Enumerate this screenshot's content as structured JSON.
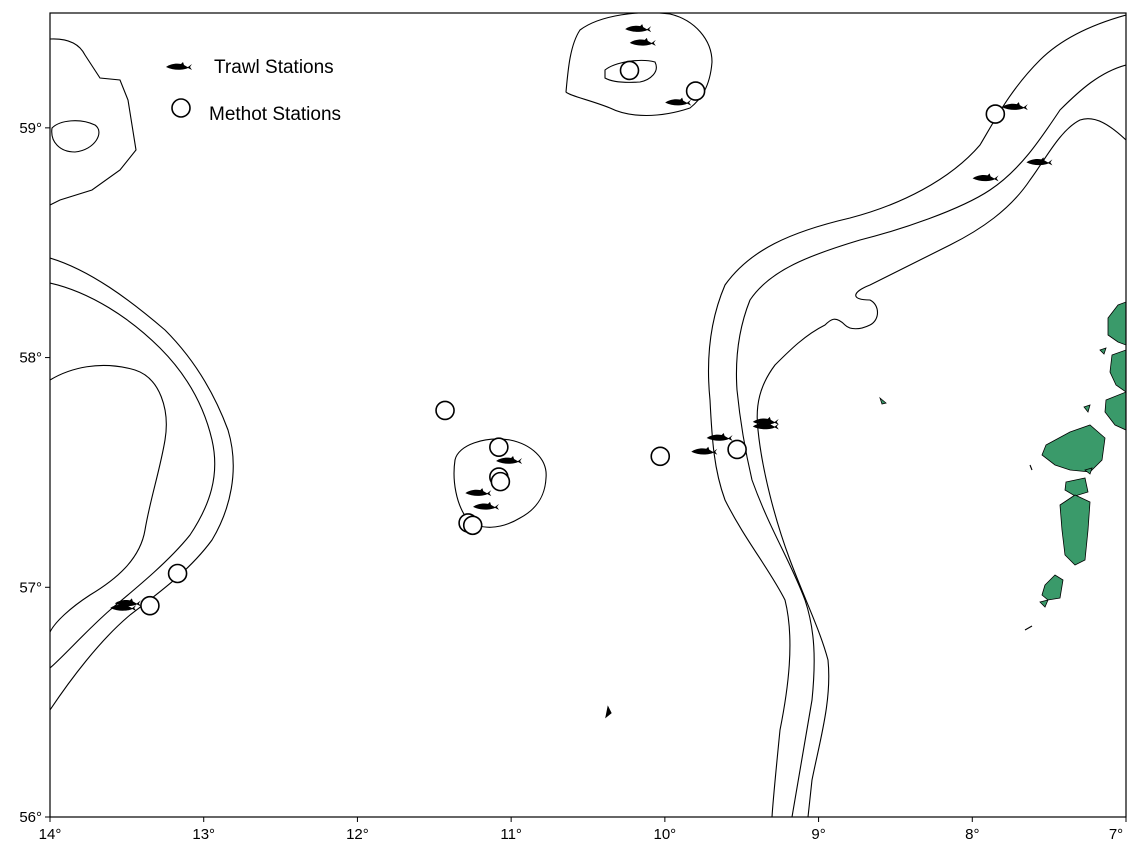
{
  "map": {
    "legend": {
      "trawl_label": "Trawl Stations",
      "methot_label": "Methot Stations"
    },
    "axes": {
      "x_ticks": [
        "14°",
        "13°",
        "12°",
        "11°",
        "10°",
        "9°",
        "8°",
        "7°"
      ],
      "y_ticks": [
        "59°",
        "58°",
        "57°",
        "56°"
      ],
      "x_values": [
        -14,
        -13,
        -12,
        -11,
        -10,
        -9,
        -8,
        -7
      ],
      "y_values": [
        59,
        58,
        57,
        56
      ]
    },
    "colors": {
      "land": "#3a9a6a",
      "contour": "#000000",
      "background": "#ffffff"
    },
    "icons": {
      "trawl": "fish-icon",
      "methot": "circle-icon"
    },
    "stations": {
      "trawl": [
        {
          "lon": -10.18,
          "lat": 59.43
        },
        {
          "lon": -10.15,
          "lat": 59.37
        },
        {
          "lon": -9.92,
          "lat": 59.11
        },
        {
          "lon": -7.73,
          "lat": 59.09
        },
        {
          "lon": -7.57,
          "lat": 58.85
        },
        {
          "lon": -7.92,
          "lat": 58.78
        },
        {
          "lon": -9.65,
          "lat": 57.65
        },
        {
          "lon": -9.75,
          "lat": 57.59
        },
        {
          "lon": -9.35,
          "lat": 57.72
        },
        {
          "lon": -9.35,
          "lat": 57.7
        },
        {
          "lon": -11.02,
          "lat": 57.55
        },
        {
          "lon": -11.22,
          "lat": 57.41
        },
        {
          "lon": -11.17,
          "lat": 57.35
        },
        {
          "lon": -13.5,
          "lat": 56.93
        },
        {
          "lon": -13.53,
          "lat": 56.91
        }
      ],
      "methot": [
        {
          "lon": -10.23,
          "lat": 59.25
        },
        {
          "lon": -9.8,
          "lat": 59.16
        },
        {
          "lon": -7.85,
          "lat": 59.06
        },
        {
          "lon": -11.43,
          "lat": 57.77
        },
        {
          "lon": -11.08,
          "lat": 57.61
        },
        {
          "lon": -11.08,
          "lat": 57.48
        },
        {
          "lon": -11.07,
          "lat": 57.46
        },
        {
          "lon": -11.28,
          "lat": 57.28
        },
        {
          "lon": -11.25,
          "lat": 57.27
        },
        {
          "lon": -10.03,
          "lat": 57.57
        },
        {
          "lon": -9.53,
          "lat": 57.6
        },
        {
          "lon": -13.17,
          "lat": 57.06
        },
        {
          "lon": -13.35,
          "lat": 56.92
        }
      ]
    }
  }
}
